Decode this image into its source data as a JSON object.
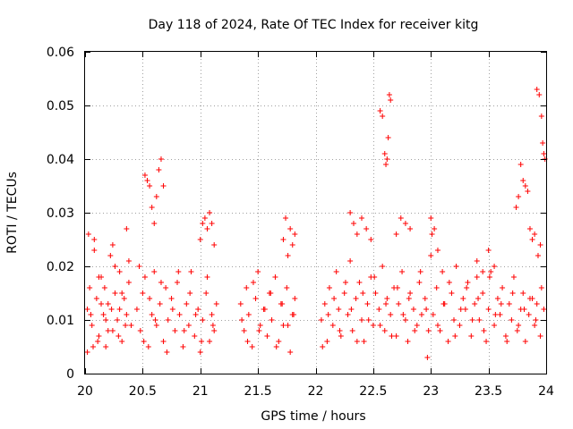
{
  "chart_data": {
    "type": "scatter",
    "title": "Day 118 of 2024, Rate Of TEC Index for receiver kitg",
    "xlabel": "GPS time / hours",
    "ylabel": "ROTI / TECUs",
    "xlim": [
      20,
      24
    ],
    "ylim": [
      0,
      0.06
    ],
    "x_ticks": [
      "20",
      "20.5",
      "21",
      "21.5",
      "22",
      "22.5",
      "23",
      "23.5",
      "24"
    ],
    "y_ticks": [
      "0",
      "0.01",
      "0.02",
      "0.03",
      "0.04",
      "0.05",
      "0.06"
    ],
    "grid": true,
    "marker": "+",
    "marker_color": "#ff0000",
    "series": [
      {
        "name": "ROTI",
        "x": [
          20.02,
          20.04,
          20.06,
          20.08,
          20.1,
          20.12,
          20.14,
          20.16,
          20.18,
          20.2,
          20.22,
          20.24,
          20.26,
          20.28,
          20.3,
          20.32,
          20.34,
          20.36,
          20.38,
          20.4,
          20.02,
          20.05,
          20.08,
          20.11,
          20.14,
          20.17,
          20.2,
          20.23,
          20.26,
          20.29,
          20.32,
          20.35,
          20.38,
          20.03,
          20.07,
          20.12,
          20.18,
          20.24,
          20.3,
          20.36,
          20.45,
          20.48,
          20.5,
          20.52,
          20.55,
          20.58,
          20.6,
          20.62,
          20.65,
          20.68,
          20.7,
          20.72,
          20.75,
          20.78,
          20.8,
          20.82,
          20.85,
          20.88,
          20.9,
          20.92,
          20.95,
          20.98,
          21.0,
          21.02,
          21.05,
          21.08,
          21.1,
          21.12,
          21.14,
          20.47,
          20.51,
          20.56,
          20.61,
          20.66,
          20.71,
          20.76,
          20.81,
          20.86,
          20.91,
          20.96,
          21.01,
          21.06,
          21.11,
          20.52,
          20.54,
          20.56,
          20.58,
          20.6,
          20.62,
          20.64,
          20.66,
          20.68,
          21.0,
          21.02,
          21.04,
          21.06,
          21.08,
          21.1,
          21.12,
          21.35,
          21.38,
          21.4,
          21.42,
          21.45,
          21.48,
          21.5,
          21.52,
          21.55,
          21.58,
          21.6,
          21.62,
          21.65,
          21.68,
          21.7,
          21.72,
          21.75,
          21.78,
          21.8,
          21.82,
          21.36,
          21.41,
          21.46,
          21.51,
          21.56,
          21.61,
          21.66,
          21.71,
          21.76,
          21.81,
          21.72,
          21.74,
          21.76,
          21.78,
          21.8,
          21.82,
          22.05,
          22.08,
          22.1,
          22.12,
          22.15,
          22.18,
          22.2,
          22.22,
          22.25,
          22.28,
          22.3,
          22.32,
          22.35,
          22.38,
          22.4,
          22.42,
          22.45,
          22.48,
          22.5,
          22.52,
          22.55,
          22.58,
          22.6,
          22.62,
          22.65,
          22.68,
          22.7,
          22.72,
          22.75,
          22.78,
          22.8,
          22.82,
          22.85,
          22.88,
          22.9,
          22.92,
          22.95,
          22.98,
          22.06,
          22.11,
          22.16,
          22.21,
          22.26,
          22.31,
          22.36,
          22.41,
          22.46,
          22.51,
          22.56,
          22.61,
          22.66,
          22.71,
          22.76,
          22.81,
          22.86,
          22.91,
          22.96,
          22.3,
          22.33,
          22.36,
          22.4,
          22.44,
          22.48,
          22.7,
          22.74,
          22.78,
          22.82,
          22.56,
          22.58,
          22.6,
          22.62,
          22.64,
          22.65,
          22.63,
          22.61,
          23.0,
          23.02,
          23.05,
          23.08,
          23.1,
          23.12,
          23.15,
          23.18,
          23.2,
          23.22,
          23.25,
          23.28,
          23.3,
          23.32,
          23.35,
          23.38,
          23.4,
          23.42,
          23.45,
          23.48,
          23.5,
          23.52,
          23.55,
          23.58,
          23.6,
          23.62,
          23.65,
          23.68,
          23.7,
          23.72,
          23.75,
          23.78,
          23.8,
          23.82,
          23.85,
          23.88,
          23.9,
          23.92,
          23.95,
          23.98,
          23.01,
          23.06,
          23.11,
          23.16,
          23.21,
          23.26,
          23.31,
          23.36,
          23.41,
          23.46,
          23.51,
          23.56,
          23.61,
          23.66,
          23.71,
          23.76,
          23.81,
          23.86,
          23.91,
          23.96,
          22.97,
          23.0,
          23.03,
          23.06,
          23.4,
          23.45,
          23.5,
          23.55,
          23.74,
          23.76,
          23.78,
          23.8,
          23.82,
          23.84,
          23.86,
          23.88,
          23.9,
          23.92,
          23.94,
          23.96,
          23.97,
          23.98,
          23.99,
          23.95,
          23.93
        ],
        "y": [
          0.012,
          0.016,
          0.009,
          0.025,
          0.014,
          0.007,
          0.018,
          0.011,
          0.005,
          0.013,
          0.022,
          0.008,
          0.015,
          0.01,
          0.019,
          0.006,
          0.014,
          0.011,
          0.017,
          0.009,
          0.004,
          0.011,
          0.023,
          0.006,
          0.013,
          0.016,
          0.008,
          0.012,
          0.02,
          0.007,
          0.015,
          0.009,
          0.021,
          0.026,
          0.005,
          0.018,
          0.01,
          0.024,
          0.012,
          0.027,
          0.012,
          0.008,
          0.015,
          0.018,
          0.005,
          0.011,
          0.019,
          0.009,
          0.013,
          0.006,
          0.016,
          0.01,
          0.014,
          0.008,
          0.017,
          0.011,
          0.005,
          0.013,
          0.009,
          0.019,
          0.007,
          0.012,
          0.004,
          0.01,
          0.015,
          0.006,
          0.011,
          0.008,
          0.013,
          0.02,
          0.006,
          0.014,
          0.01,
          0.017,
          0.004,
          0.012,
          0.019,
          0.008,
          0.015,
          0.011,
          0.006,
          0.018,
          0.009,
          0.037,
          0.036,
          0.035,
          0.031,
          0.028,
          0.033,
          0.038,
          0.04,
          0.035,
          0.025,
          0.028,
          0.029,
          0.027,
          0.03,
          0.028,
          0.024,
          0.013,
          0.008,
          0.016,
          0.011,
          0.005,
          0.014,
          0.019,
          0.009,
          0.012,
          0.007,
          0.015,
          0.01,
          0.018,
          0.006,
          0.013,
          0.009,
          0.016,
          0.004,
          0.011,
          0.014,
          0.01,
          0.006,
          0.017,
          0.008,
          0.012,
          0.015,
          0.005,
          0.013,
          0.009,
          0.011,
          0.025,
          0.029,
          0.022,
          0.027,
          0.024,
          0.026,
          0.01,
          0.013,
          0.006,
          0.016,
          0.009,
          0.019,
          0.012,
          0.007,
          0.015,
          0.011,
          0.021,
          0.008,
          0.014,
          0.017,
          0.01,
          0.006,
          0.013,
          0.018,
          0.009,
          0.015,
          0.012,
          0.02,
          0.008,
          0.014,
          0.011,
          0.016,
          0.007,
          0.013,
          0.019,
          0.01,
          0.006,
          0.015,
          0.012,
          0.009,
          0.017,
          0.011,
          0.014,
          0.008,
          0.005,
          0.011,
          0.014,
          0.008,
          0.017,
          0.012,
          0.006,
          0.015,
          0.01,
          0.018,
          0.009,
          0.013,
          0.007,
          0.016,
          0.011,
          0.014,
          0.008,
          0.019,
          0.012,
          0.03,
          0.028,
          0.026,
          0.029,
          0.027,
          0.025,
          0.026,
          0.029,
          0.028,
          0.027,
          0.049,
          0.048,
          0.041,
          0.04,
          0.052,
          0.051,
          0.044,
          0.039,
          0.022,
          0.011,
          0.016,
          0.008,
          0.019,
          0.013,
          0.006,
          0.015,
          0.01,
          0.02,
          0.009,
          0.014,
          0.012,
          0.017,
          0.007,
          0.013,
          0.018,
          0.01,
          0.015,
          0.006,
          0.012,
          0.019,
          0.009,
          0.014,
          0.011,
          0.016,
          0.007,
          0.013,
          0.01,
          0.018,
          0.008,
          0.012,
          0.015,
          0.006,
          0.011,
          0.014,
          0.009,
          0.013,
          0.007,
          0.012,
          0.026,
          0.009,
          0.013,
          0.017,
          0.007,
          0.012,
          0.016,
          0.01,
          0.014,
          0.008,
          0.018,
          0.011,
          0.013,
          0.006,
          0.015,
          0.009,
          0.012,
          0.014,
          0.01,
          0.016,
          0.003,
          0.029,
          0.027,
          0.023,
          0.021,
          0.019,
          0.023,
          0.02,
          0.031,
          0.033,
          0.039,
          0.036,
          0.035,
          0.034,
          0.027,
          0.025,
          0.026,
          0.053,
          0.052,
          0.048,
          0.043,
          0.041,
          0.04,
          0.024,
          0.022
        ]
      }
    ]
  }
}
